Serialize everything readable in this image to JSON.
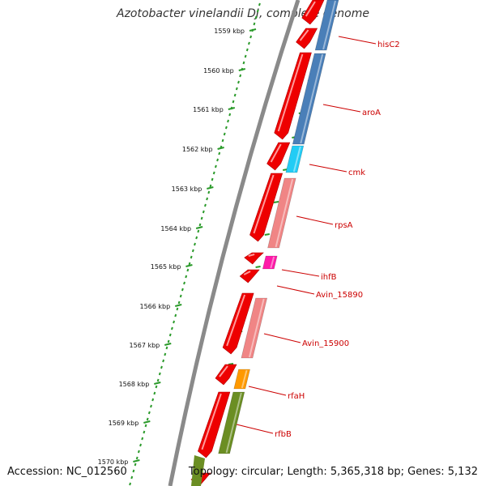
{
  "title": "Azotobacter vinelandii DJ, complete genome",
  "footer": {
    "accession": "Accession: NC_012560",
    "topology": "Topology: circular; Length: 5,365,318 bp; Genes: 5,132"
  },
  "colors": {
    "backbone": "#888888",
    "tick": "#2a9a2a",
    "cds": "#ee0000",
    "label": "#cc0000",
    "leader_line": "#cc0000"
  },
  "ruler": {
    "unit": "kbp",
    "labels": [
      "1559 kbp",
      "1560 kbp",
      "1561 kbp",
      "1562 kbp",
      "1563 kbp",
      "1564 kbp",
      "1565 kbp",
      "1566 kbp",
      "1567 kbp",
      "1568 kbp",
      "1569 kbp",
      "1570 kbp"
    ]
  },
  "genes": [
    {
      "name": "hisC2",
      "color": "#4a7fb8"
    },
    {
      "name": "aroA",
      "color": "#4a7fb8"
    },
    {
      "name": "cmk",
      "color": "#22ccf5"
    },
    {
      "name": "rpsA",
      "color": "#f08585"
    },
    {
      "name": "ihfB",
      "color": "#ff1aa8"
    },
    {
      "name": "Avin_15890",
      "color": "#ee0000"
    },
    {
      "name": "Avin_15900",
      "color": "#f08585"
    },
    {
      "name": "rfaH",
      "color": "#ff9900"
    },
    {
      "name": "rfbB",
      "color": "#6b8e23"
    }
  ]
}
